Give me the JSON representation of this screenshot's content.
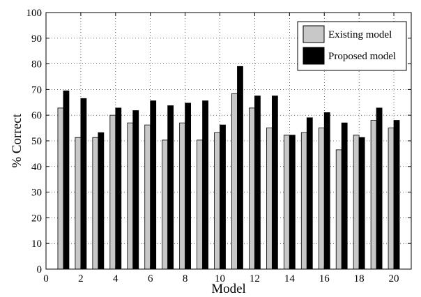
{
  "chart_data": {
    "type": "bar",
    "title": "",
    "xlabel": "Model",
    "ylabel": "% Correct",
    "xlim": [
      0,
      21
    ],
    "ylim": [
      0,
      100
    ],
    "x_ticks": [
      "0",
      "2",
      "4",
      "6",
      "8",
      "10",
      "12",
      "14",
      "16",
      "18",
      "20"
    ],
    "y_ticks": [
      "0",
      "10",
      "20",
      "30",
      "40",
      "50",
      "60",
      "70",
      "80",
      "90",
      "100"
    ],
    "grid": true,
    "legend_position": "top-right",
    "categories": [
      1,
      2,
      3,
      4,
      5,
      6,
      7,
      8,
      9,
      10,
      11,
      12,
      13,
      14,
      15,
      16,
      17,
      18,
      19,
      20
    ],
    "series": [
      {
        "name": "Existing model",
        "color": "#c8c8c8",
        "values": [
          62.8,
          51.3,
          51.3,
          60.0,
          57.0,
          56.2,
          50.3,
          57.0,
          50.3,
          53.2,
          68.4,
          62.8,
          55.0,
          52.2,
          53.2,
          55.0,
          46.5,
          52.2,
          58.0,
          55.0
        ]
      },
      {
        "name": "Proposed model",
        "color": "#000000",
        "values": [
          69.5,
          66.5,
          53.2,
          62.8,
          61.8,
          65.6,
          63.7,
          64.7,
          65.6,
          56.2,
          79.0,
          67.5,
          67.5,
          52.2,
          59.0,
          61.0,
          57.0,
          51.3,
          62.8,
          58.0
        ]
      }
    ]
  }
}
